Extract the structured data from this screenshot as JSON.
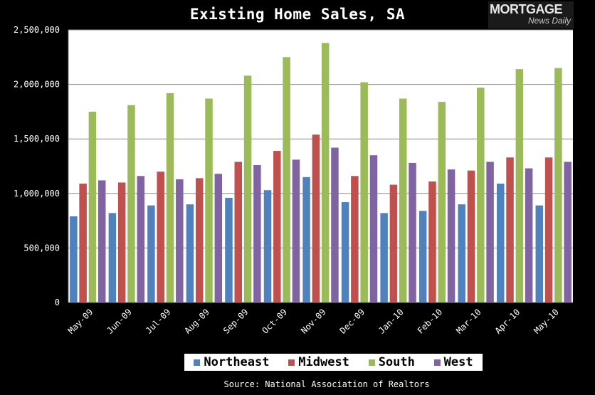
{
  "logo": {
    "brand": "MORTGAGE",
    "sub": "News Daily"
  },
  "source": "Source: National Association of Realtors",
  "chart_data": {
    "type": "bar",
    "title": "Existing Home Sales, SA",
    "xlabel": "",
    "ylabel": "",
    "ylim": [
      0,
      2500000
    ],
    "yticks": [
      0,
      500000,
      1000000,
      1500000,
      2000000,
      2500000
    ],
    "ytick_labels": [
      "0",
      "500,000",
      "1,000,000",
      "1,500,000",
      "2,000,000",
      "2,500,000"
    ],
    "grid": true,
    "legend": "bottom",
    "categories": [
      "May-09",
      "Jun-09",
      "Jul-09",
      "Aug-09",
      "Sep-09",
      "Oct-09",
      "Nov-09",
      "Dec-09",
      "Jan-10",
      "Feb-10",
      "Mar-10",
      "Apr-10",
      "May-10"
    ],
    "series": [
      {
        "name": "Northeast",
        "color": "#4f81bd",
        "values": [
          790000,
          820000,
          890000,
          900000,
          960000,
          1030000,
          1150000,
          920000,
          820000,
          840000,
          900000,
          1090000,
          890000
        ]
      },
      {
        "name": "Midwest",
        "color": "#c0504d",
        "values": [
          1090000,
          1100000,
          1200000,
          1140000,
          1290000,
          1390000,
          1540000,
          1160000,
          1080000,
          1110000,
          1210000,
          1330000,
          1330000
        ]
      },
      {
        "name": "South",
        "color": "#9bbb59",
        "values": [
          1750000,
          1810000,
          1920000,
          1870000,
          2080000,
          2250000,
          2380000,
          2020000,
          1870000,
          1840000,
          1970000,
          2140000,
          2150000
        ]
      },
      {
        "name": "West",
        "color": "#8064a2",
        "values": [
          1120000,
          1160000,
          1130000,
          1180000,
          1260000,
          1310000,
          1420000,
          1350000,
          1280000,
          1220000,
          1290000,
          1230000,
          1290000
        ]
      }
    ]
  }
}
